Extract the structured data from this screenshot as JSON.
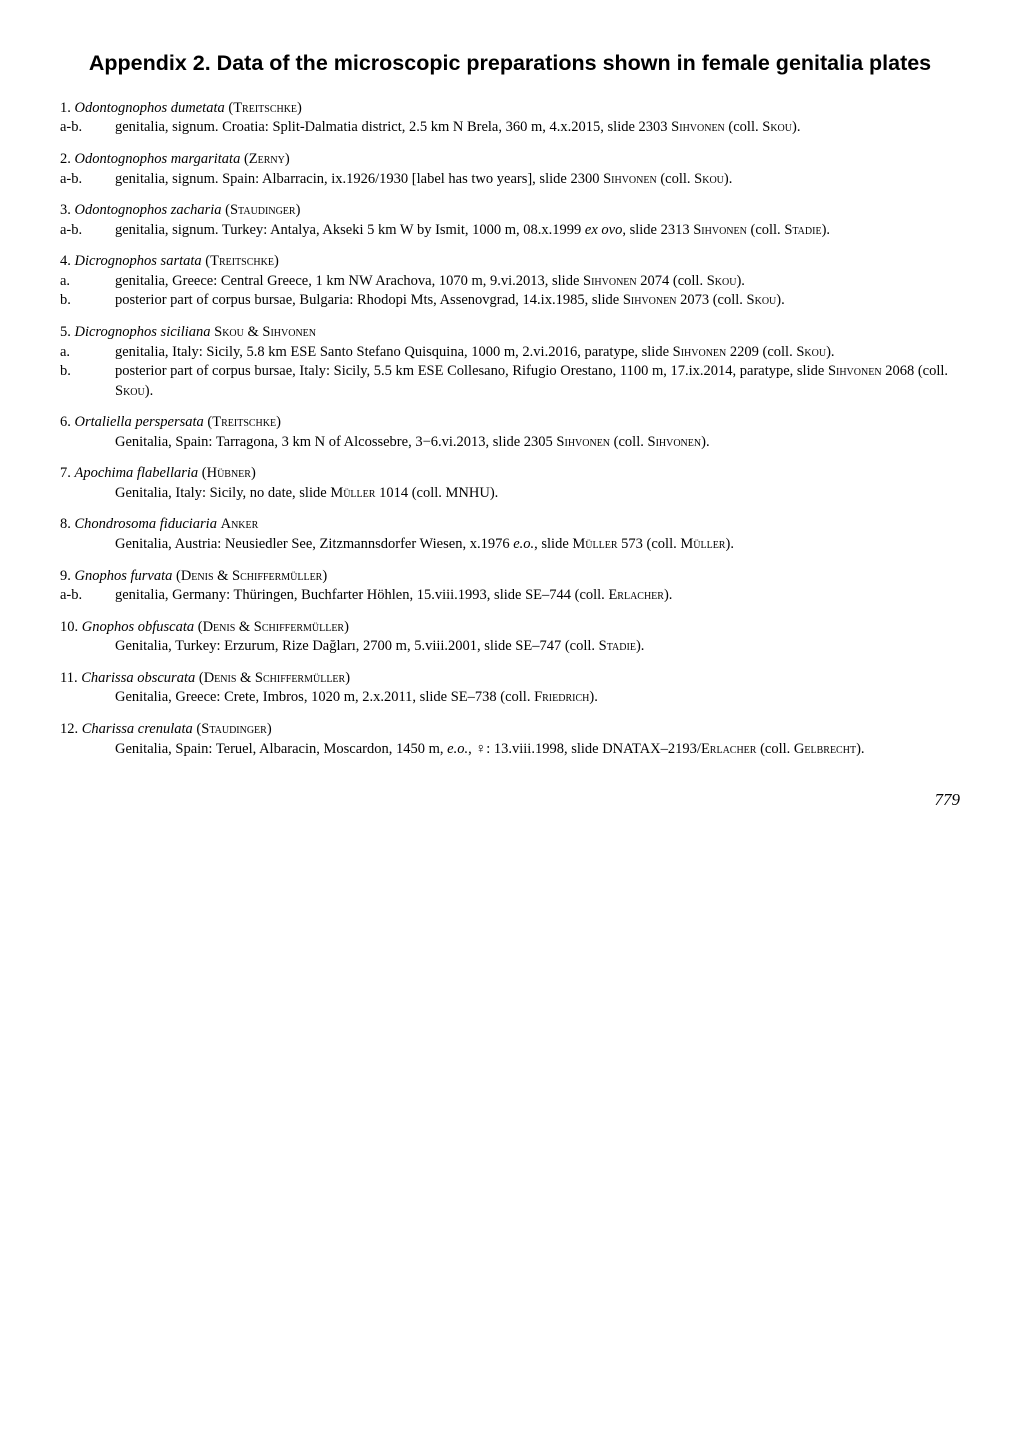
{
  "title": "Appendix 2. Data of the microscopic preparations shown in female genitalia plates",
  "entries": [
    {
      "num": "1.",
      "species": "Odontognophos dumetata",
      "author_sc": "(Treitschke)",
      "subs": [
        {
          "label": "a-b.",
          "html": "genitalia, signum. Croatia: Split-Dalmatia district, 2.5 km N Brela, 360 m, 4.x.2015, slide 2303 <span class=\"sc\">Sihvonen</span> (coll. <span class=\"sc\">Skou</span>)."
        }
      ]
    },
    {
      "num": "2.",
      "species": "Odontognophos margaritata",
      "author_sc": "(Zerny)",
      "subs": [
        {
          "label": "a-b.",
          "html": "genitalia, signum. Spain: Albarracin, ix.1926/1930 [label has two years], slide 2300 <span class=\"sc\">Sihvonen</span> (coll. <span class=\"sc\">Skou</span>)."
        }
      ]
    },
    {
      "num": "3.",
      "species": "Odontognophos zacharia",
      "author_sc": "(Staudinger)",
      "subs": [
        {
          "label": "a-b.",
          "html": "genitalia, signum. Turkey: Antalya, Akseki 5 km W by Ismit, 1000 m, 08.x.1999 <i>ex ovo</i>, slide 2313 <span class=\"sc\">Sihvonen</span> (coll. <span class=\"sc\">Stadie</span>)."
        }
      ]
    },
    {
      "num": "4.",
      "species": "Dicrognophos sartata",
      "author_sc": "(Treitschke)",
      "subs": [
        {
          "label": "a.",
          "html": "genitalia, Greece: Central Greece, 1 km NW Arachova, 1070 m, 9.vi.2013, slide <span class=\"sc\">Sihvonen</span> 2074 (coll. <span class=\"sc\">Skou</span>)."
        },
        {
          "label": "b.",
          "html": "posterior part of corpus bursae, Bulgaria: Rhodopi Mts, Assenovgrad, 14.ix.1985, slide <span class=\"sc\">Sihvonen</span> 2073 (coll. <span class=\"sc\">Skou</span>)."
        }
      ]
    },
    {
      "num": "5.",
      "species": "Dicrognophos siciliana",
      "author_sc": "Skou & Sihvonen",
      "subs": [
        {
          "label": "a.",
          "html": "genitalia, Italy: Sicily, 5.8 km ESE Santo Stefano Quisquina, 1000 m, 2.vi.2016, paratype, slide <span class=\"sc\">Sihvonen</span> 2209 (coll. <span class=\"sc\">Skou</span>)."
        },
        {
          "label": "b.",
          "html": "posterior part of corpus bursae, Italy: Sicily, 5.5 km ESE Collesano, Rifugio Orestano, 1100 m, 17.ix.2014, paratype, slide <span class=\"sc\">Sihvonen</span> 2068 (coll. <span class=\"sc\">Skou</span>)."
        }
      ]
    },
    {
      "num": "6.",
      "species": "Ortaliella perspersata",
      "author_sc": "(Treitschke)",
      "subs": [
        {
          "label": "",
          "html": "Genitalia, Spain: Tarragona, 3 km N of Alcossebre, 3−6.vi.2013, slide 2305 <span class=\"sc\">Sihvonen</span> (coll. <span class=\"sc\">Sihvonen</span>)."
        }
      ]
    },
    {
      "num": "7.",
      "species": "Apochima flabellaria",
      "author_sc": "(Hübner)",
      "subs": [
        {
          "label": "",
          "html": "Genitalia, Italy: Sicily, no date, slide <span class=\"sc\">Müller</span> 1014 (coll. MNHU)."
        }
      ]
    },
    {
      "num": "8.",
      "species": "Chondrosoma fiduciaria",
      "author_sc": "Anker",
      "subs": [
        {
          "label": "",
          "html": "Genitalia, Austria: Neusiedler See, Zitzmannsdorfer Wiesen, x.1976 <i>e.o.</i>, slide <span class=\"sc\">Müller</span> 573 (coll. <span class=\"sc\">Müller</span>)."
        }
      ]
    },
    {
      "num": "9.",
      "species": "Gnophos furvata",
      "author_sc": "(Denis & Schiffermüller)",
      "subs": [
        {
          "label": "a-b.",
          "html": "genitalia, Germany: Thüringen, Buchfarter Höhlen, 15.viii.1993, slide SE–744 (coll. <span class=\"sc\">Erlacher</span>)."
        }
      ]
    },
    {
      "num": "10.",
      "species": "Gnophos obfuscata",
      "author_sc": "(Denis & Schiffermüller)",
      "subs": [
        {
          "label": "",
          "html": "Genitalia, Turkey: Erzurum, Rize Dağları, 2700 m, 5.viii.2001, slide SE–747 (coll. <span class=\"sc\">Stadie</span>)."
        }
      ]
    },
    {
      "num": "11.",
      "species": "Charissa obscurata",
      "author_sc": "(Denis & Schiffermüller)",
      "subs": [
        {
          "label": "",
          "html": "Genitalia, Greece: Crete, Imbros, 1020 m, 2.x.2011, slide SE–738 (coll. <span class=\"sc\">Friedrich</span>)."
        }
      ]
    },
    {
      "num": "12.",
      "species": "Charissa crenulata",
      "author_sc": "(Staudinger)",
      "subs": [
        {
          "label": "",
          "html": "Genitalia, Spain: Teruel, Albaracin, Moscardon, 1450 m, <i>e.o.</i>, ♀: 13.viii.1998, slide DNATAX–2193/<span class=\"sc\">Erlacher</span> (coll. <span class=\"sc\">Gelbrecht</span>)."
        }
      ]
    }
  ],
  "page_number": "779"
}
